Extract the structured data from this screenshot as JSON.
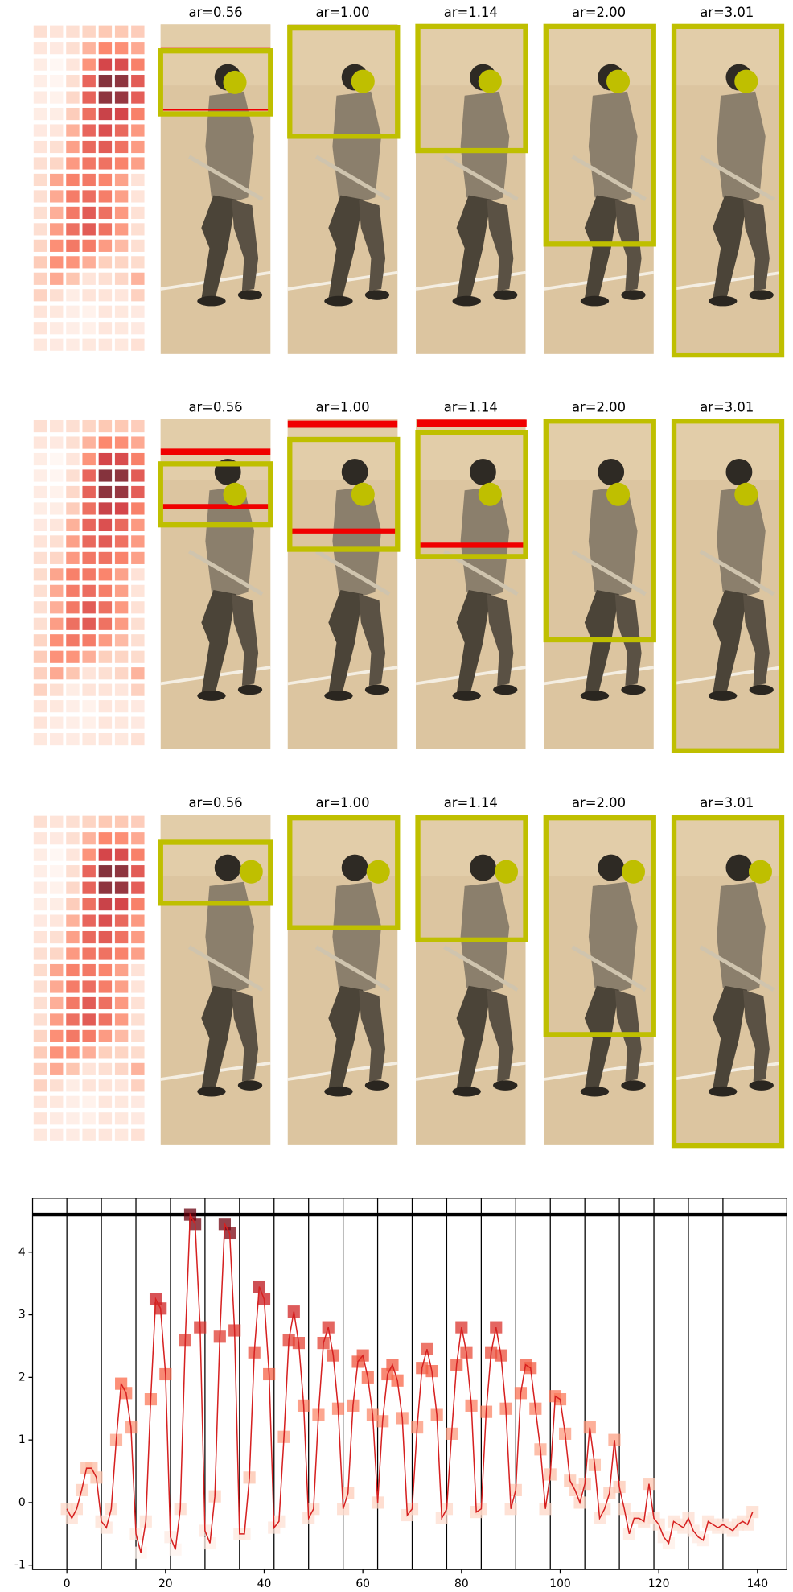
{
  "image_grid": {
    "rows": [
      [
        "ar=0.56",
        "ar=1.00",
        "ar=1.14",
        "ar=2.00",
        "ar=3.01"
      ],
      [
        "ar=0.56",
        "ar=1.00",
        "ar=1.14",
        "ar=2.00",
        "ar=3.01"
      ],
      [
        "ar=0.56",
        "ar=1.00",
        "ar=1.14",
        "ar=2.00",
        "ar=3.01"
      ]
    ]
  },
  "chart_data": {
    "type": "line",
    "x": [
      0,
      1,
      2,
      3,
      4,
      5,
      6,
      7,
      8,
      9,
      10,
      11,
      12,
      13,
      14,
      15,
      16,
      17,
      18,
      19,
      20,
      21,
      22,
      23,
      24,
      25,
      26,
      27,
      28,
      29,
      30,
      31,
      32,
      33,
      34,
      35,
      36,
      37,
      38,
      39,
      40,
      41,
      42,
      43,
      44,
      45,
      46,
      47,
      48,
      49,
      50,
      51,
      52,
      53,
      54,
      55,
      56,
      57,
      58,
      59,
      60,
      61,
      62,
      63,
      64,
      65,
      66,
      67,
      68,
      69,
      70,
      71,
      72,
      73,
      74,
      75,
      76,
      77,
      78,
      79,
      80,
      81,
      82,
      83,
      84,
      85,
      86,
      87,
      88,
      89,
      90,
      91,
      92,
      93,
      94,
      95,
      96,
      97,
      98,
      99,
      100,
      101,
      102,
      103,
      104,
      105,
      106,
      107,
      108,
      109,
      110,
      111,
      112,
      113,
      114,
      115,
      116,
      117,
      118,
      119,
      120,
      121,
      122,
      123,
      124,
      125,
      126,
      127,
      128,
      129,
      130,
      131,
      132,
      133,
      134,
      135,
      136,
      137,
      138,
      139
    ],
    "values": [
      -0.1,
      -0.25,
      -0.1,
      0.2,
      0.55,
      0.55,
      0.4,
      -0.3,
      -0.4,
      -0.1,
      1.0,
      1.9,
      1.75,
      1.2,
      -0.5,
      -0.8,
      -0.3,
      1.65,
      3.25,
      3.1,
      2.05,
      -0.55,
      -0.75,
      -0.1,
      2.6,
      4.6,
      4.45,
      2.8,
      -0.45,
      -0.65,
      0.1,
      2.65,
      4.45,
      4.3,
      2.75,
      -0.5,
      -0.5,
      0.4,
      2.4,
      3.45,
      3.25,
      2.05,
      -0.4,
      -0.3,
      1.05,
      2.6,
      3.05,
      2.55,
      1.55,
      -0.25,
      -0.1,
      1.4,
      2.55,
      2.8,
      2.35,
      1.5,
      -0.1,
      0.15,
      1.55,
      2.25,
      2.35,
      2.0,
      1.4,
      0.0,
      1.3,
      2.05,
      2.2,
      1.95,
      1.35,
      -0.2,
      -0.1,
      1.2,
      2.15,
      2.45,
      2.1,
      1.4,
      -0.25,
      -0.1,
      1.1,
      2.2,
      2.8,
      2.4,
      1.55,
      -0.15,
      -0.1,
      1.45,
      2.4,
      2.8,
      2.35,
      1.5,
      -0.1,
      0.2,
      1.75,
      2.2,
      2.15,
      1.5,
      0.85,
      -0.1,
      0.45,
      1.7,
      1.65,
      1.1,
      0.35,
      0.2,
      0.0,
      0.3,
      1.2,
      0.6,
      -0.25,
      -0.1,
      0.15,
      1.0,
      0.25,
      -0.1,
      -0.5,
      -0.25,
      -0.25,
      -0.3,
      0.3,
      -0.25,
      -0.35,
      -0.55,
      -0.65,
      -0.3,
      -0.35,
      -0.4,
      -0.25,
      -0.45,
      -0.55,
      -0.6,
      -0.3,
      -0.35,
      -0.4,
      -0.35,
      -0.4,
      -0.45,
      -0.35,
      -0.3,
      -0.35,
      -0.15
    ],
    "color": "#d62020",
    "colormap": [
      "#fff5f0",
      "#fcbba1",
      "#fb6a4a",
      "#cb181d",
      "#67000d"
    ],
    "xlim": [
      -6.95,
      145.95
    ],
    "ylim": [
      -1.07,
      4.86
    ],
    "xticks": [
      0,
      20,
      40,
      60,
      80,
      100,
      120,
      140
    ],
    "yticks": [
      -1,
      0,
      1,
      2,
      3,
      4
    ],
    "vlines": [
      0,
      7,
      14,
      21,
      28,
      35,
      42,
      49,
      56,
      63,
      70,
      77,
      84,
      91,
      98,
      105,
      112,
      119,
      126,
      133
    ],
    "hline": 4.6,
    "heatmap_columns": 7
  }
}
